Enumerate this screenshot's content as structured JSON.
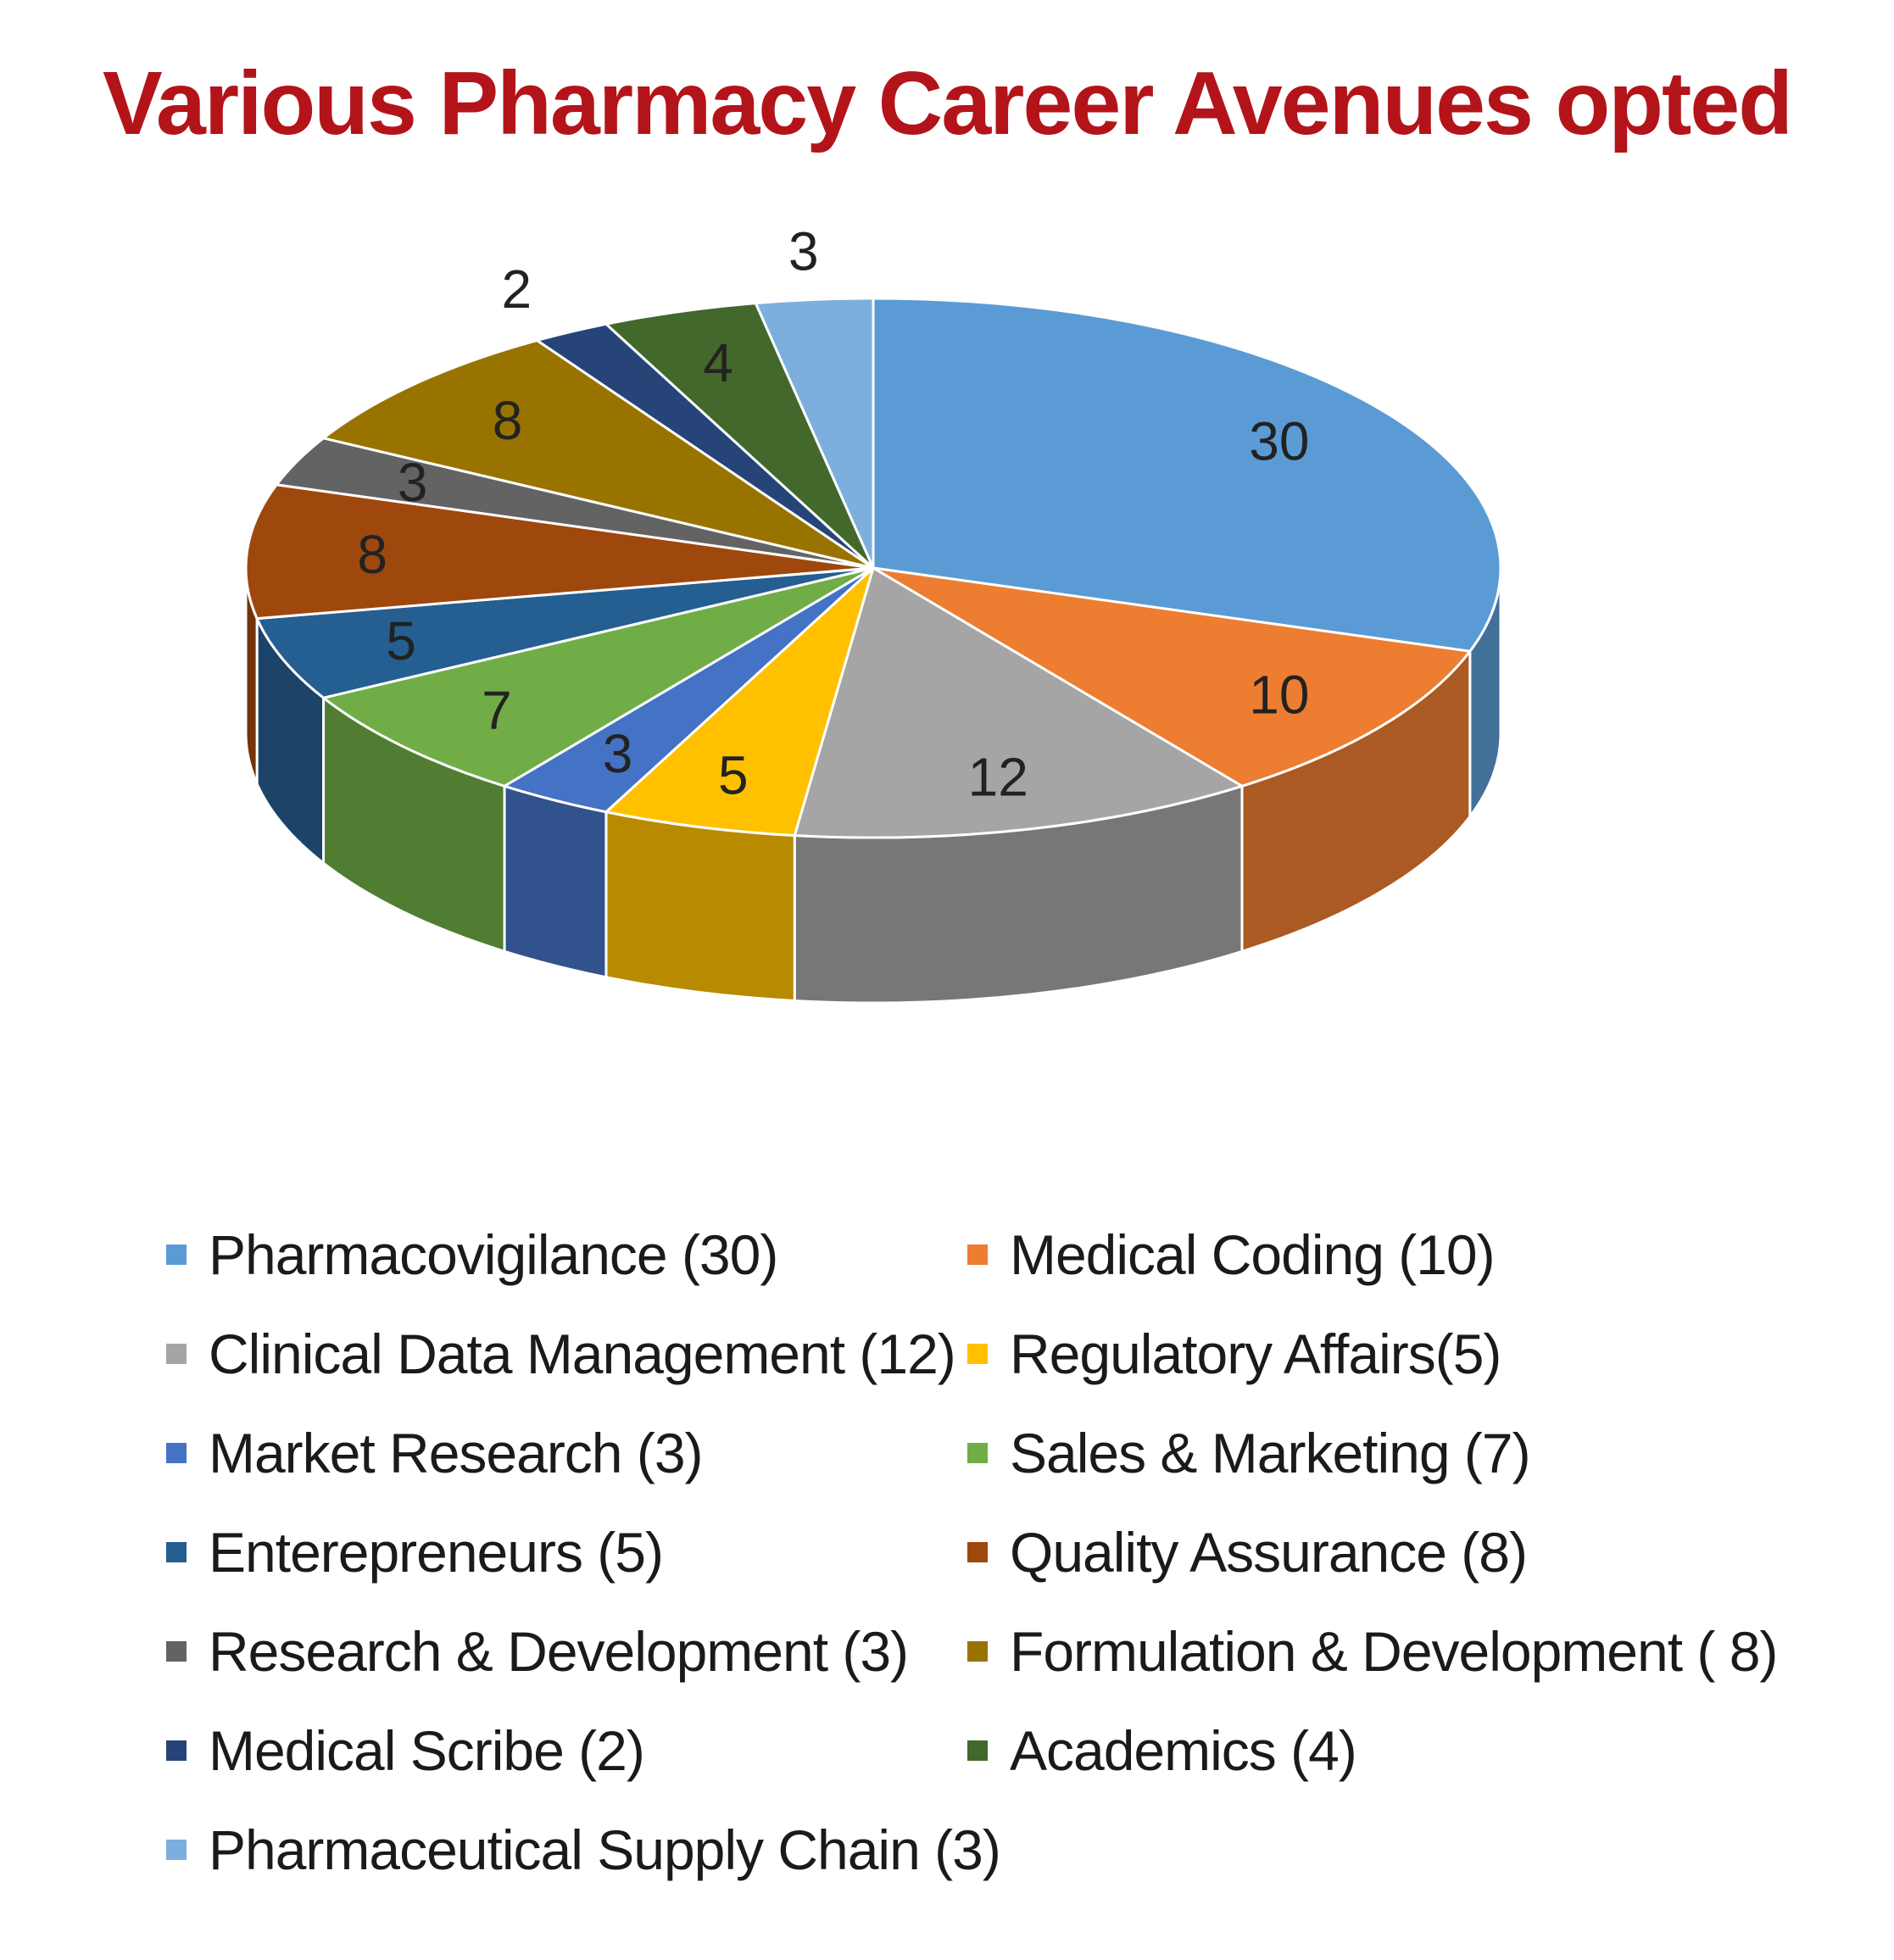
{
  "chart_data": {
    "type": "pie",
    "title": "Various Pharmacy Career Avenues opted",
    "legend_position": "bottom",
    "slices": [
      {
        "label": "Pharmacovigilance (30)",
        "value": 30,
        "value_label": "30",
        "color": "#5b9bd5"
      },
      {
        "label": "Medical Coding (10)",
        "value": 10,
        "value_label": "10",
        "color": "#ed7d31"
      },
      {
        "label": "Clinical Data Management (12)",
        "value": 12,
        "value_label": "12",
        "color": "#a5a5a5"
      },
      {
        "label": "Regulatory Affairs(5)",
        "value": 5,
        "value_label": "5",
        "color": "#ffc000"
      },
      {
        "label": "Market Research (3)",
        "value": 3,
        "value_label": "3",
        "color": "#4472c4"
      },
      {
        "label": "Sales & Marketing (7)",
        "value": 7,
        "value_label": "7",
        "color": "#70ad47"
      },
      {
        "label": "Enterepreneurs (5)",
        "value": 5,
        "value_label": "5",
        "color": "#255e91"
      },
      {
        "label": "Quality Assurance (8)",
        "value": 8,
        "value_label": "8",
        "color": "#9e480e"
      },
      {
        "label": "Research & Development (3)",
        "value": 3,
        "value_label": "3",
        "color": "#636363"
      },
      {
        "label": "Formulation & Development ( 8)",
        "value": 8,
        "value_label": "8",
        "color": "#997300"
      },
      {
        "label": "Medical Scribe (2)",
        "value": 2,
        "value_label": "2",
        "color": "#264478"
      },
      {
        "label": "Academics (4)",
        "value": 4,
        "value_label": "4",
        "color": "#43682b"
      },
      {
        "label": "Pharmaceutical Supply Chain (3)",
        "value": 3,
        "value_label": "3",
        "color": "#7cafdd"
      }
    ]
  }
}
